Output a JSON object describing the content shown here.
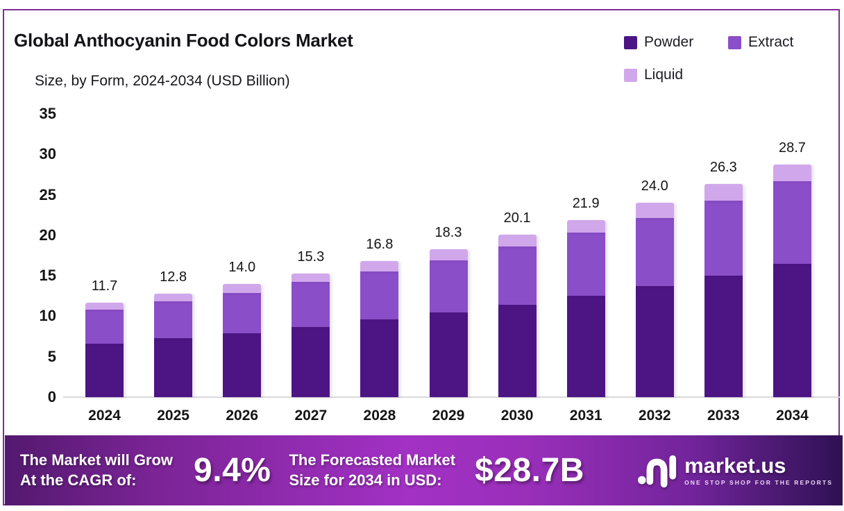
{
  "title": "Global Anthocyanin Food Colors Market",
  "subtitle": "Size, by Form, 2024-2034 (USD Billion)",
  "legend": {
    "items": [
      {
        "label": "Powder",
        "color": "#4C1583"
      },
      {
        "label": "Extract",
        "color": "#8A4EC8"
      },
      {
        "label": "Liquid",
        "color": "#D1A7EB"
      }
    ]
  },
  "chart_data": {
    "type": "bar",
    "stacked": true,
    "title": "Global Anthocyanin Food Colors Market",
    "subtitle": "Size, by Form, 2024-2034 (USD Billion)",
    "categories": [
      "2024",
      "2025",
      "2026",
      "2027",
      "2028",
      "2029",
      "2030",
      "2031",
      "2032",
      "2033",
      "2034"
    ],
    "series": [
      {
        "name": "Powder",
        "color": "#4C1583",
        "values": [
          6.6,
          7.3,
          7.9,
          8.7,
          9.6,
          10.5,
          11.4,
          12.5,
          13.7,
          15.0,
          16.5
        ]
      },
      {
        "name": "Extract",
        "color": "#8A4EC8",
        "values": [
          4.2,
          4.5,
          5.0,
          5.5,
          5.9,
          6.4,
          7.2,
          7.8,
          8.4,
          9.3,
          10.2
        ]
      },
      {
        "name": "Liquid",
        "color": "#D1A7EB",
        "values": [
          0.9,
          1.0,
          1.1,
          1.1,
          1.3,
          1.4,
          1.5,
          1.6,
          1.9,
          2.0,
          2.0
        ]
      }
    ],
    "totals": [
      "11.7",
      "12.8",
      "14.0",
      "15.3",
      "16.8",
      "18.3",
      "20.1",
      "21.9",
      "24.0",
      "26.3",
      "28.7"
    ],
    "y_ticks": [
      0,
      5,
      10,
      15,
      20,
      25,
      30,
      35
    ],
    "ylim": [
      0,
      35
    ],
    "grid": false,
    "legend_position": "top-right"
  },
  "banner": {
    "cagr_label_line1": "The Market will Grow",
    "cagr_label_line2": "At the CAGR of:",
    "cagr_value": "9.4%",
    "forecast_label_line1": "The Forecasted Market",
    "forecast_label_line2": "Size for 2034 in USD:",
    "forecast_value": "$28.7B",
    "logo_name": "market.us",
    "logo_tagline": "ONE STOP SHOP FOR THE REPORTS"
  },
  "colors": {
    "frame_border": "#7e2f94",
    "powder": "#4C1583",
    "extract": "#8A4EC8",
    "liquid": "#D1A7EB",
    "baseline": "#d9d9de",
    "banner_gradient_left": "#53196f",
    "banner_gradient_mid": "#a231c4",
    "banner_gradient_right": "#2e1153",
    "text": "#141414"
  }
}
